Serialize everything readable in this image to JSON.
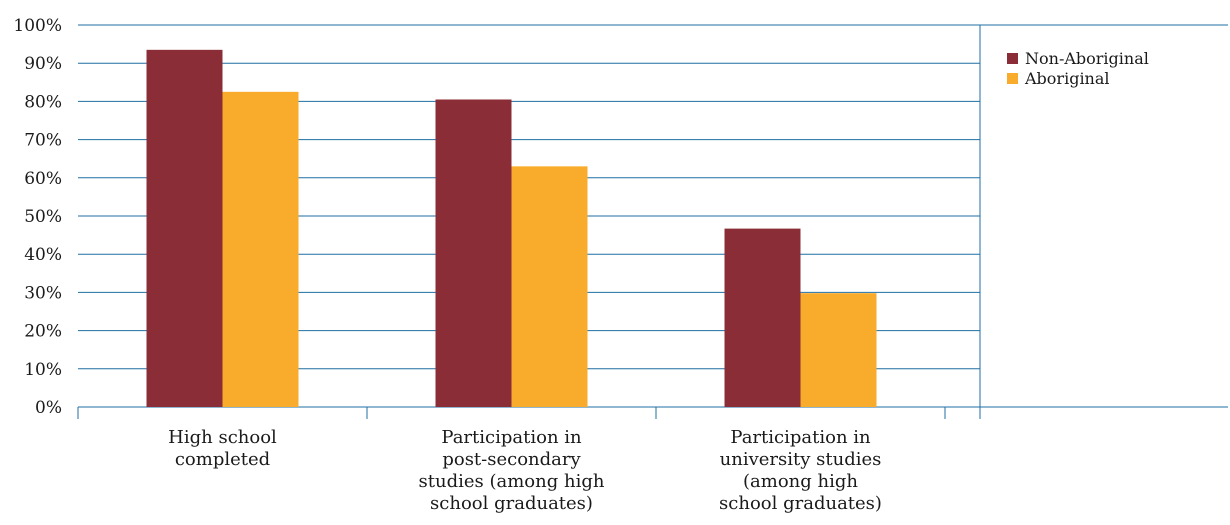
{
  "chart_data": {
    "type": "bar",
    "categories": [
      [
        "High school",
        "completed"
      ],
      [
        "Participation in",
        "post-secondary",
        "studies (among high",
        "school graduates)"
      ],
      [
        "Participation in",
        "university studies",
        "(among high",
        "school graduates)"
      ]
    ],
    "series": [
      {
        "name": "Non-Aboriginal",
        "color": "#8b2d36",
        "values": [
          93.5,
          80.5,
          46.7
        ]
      },
      {
        "name": "Aboriginal",
        "color": "#f9ab2c",
        "values": [
          82.5,
          63.0,
          29.8
        ]
      }
    ],
    "yticks": [
      "0%",
      "10%",
      "20%",
      "30%",
      "40%",
      "50%",
      "60%",
      "70%",
      "80%",
      "90%",
      "100%"
    ],
    "ylim": [
      0,
      100
    ],
    "grid": true,
    "grid_color": "#1f6fa3",
    "legend_position": "right"
  }
}
